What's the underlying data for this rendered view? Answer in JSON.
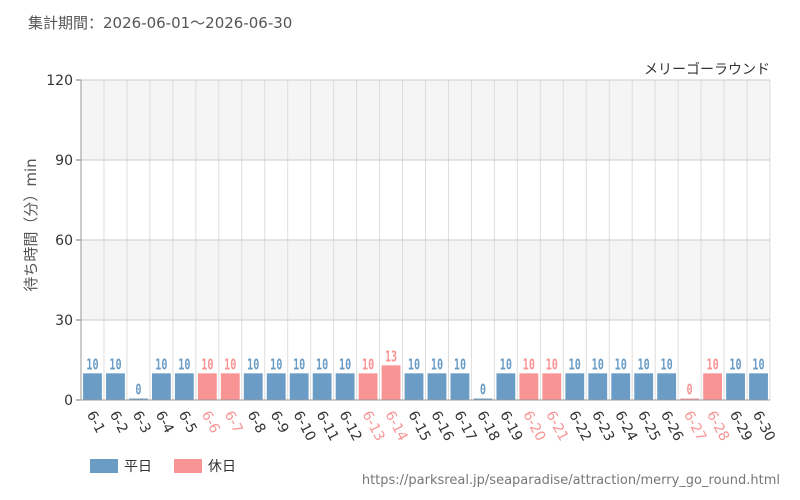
{
  "period_text": "集計期間：2026-06-01～2026-06-30",
  "source_url": "https://parksreal.jp/seaparadise/attraction/merry_go_round.html",
  "colors": {
    "weekday": "#6a9cc6",
    "holiday": "#f89494",
    "grid": "#dddddd",
    "band": "#f5f5f5"
  },
  "chart_data": {
    "type": "bar",
    "title": "メリーゴーラウンド",
    "ylabel": "待ち時間（分）min",
    "ylim": [
      0,
      120
    ],
    "yticks": [
      0,
      30,
      60,
      90,
      120
    ],
    "categories": [
      "6-1",
      "6-2",
      "6-3",
      "6-4",
      "6-5",
      "6-6",
      "6-7",
      "6-8",
      "6-9",
      "6-10",
      "6-11",
      "6-12",
      "6-13",
      "6-14",
      "6-15",
      "6-16",
      "6-17",
      "6-18",
      "6-19",
      "6-20",
      "6-21",
      "6-22",
      "6-23",
      "6-24",
      "6-25",
      "6-26",
      "6-27",
      "6-28",
      "6-29",
      "6-30"
    ],
    "values": [
      10,
      10,
      0,
      10,
      10,
      10,
      10,
      10,
      10,
      10,
      10,
      10,
      10,
      13,
      10,
      10,
      10,
      0,
      10,
      10,
      10,
      10,
      10,
      10,
      10,
      10,
      0,
      10,
      10,
      10
    ],
    "day_type": [
      "weekday",
      "weekday",
      "weekday",
      "weekday",
      "weekday",
      "holiday",
      "holiday",
      "weekday",
      "weekday",
      "weekday",
      "weekday",
      "weekday",
      "holiday",
      "holiday",
      "weekday",
      "weekday",
      "weekday",
      "weekday",
      "weekday",
      "holiday",
      "holiday",
      "weekday",
      "weekday",
      "weekday",
      "weekday",
      "weekday",
      "holiday",
      "holiday",
      "weekday",
      "weekday"
    ],
    "legend": [
      {
        "key": "weekday",
        "label": "平日"
      },
      {
        "key": "holiday",
        "label": "休日"
      }
    ]
  }
}
